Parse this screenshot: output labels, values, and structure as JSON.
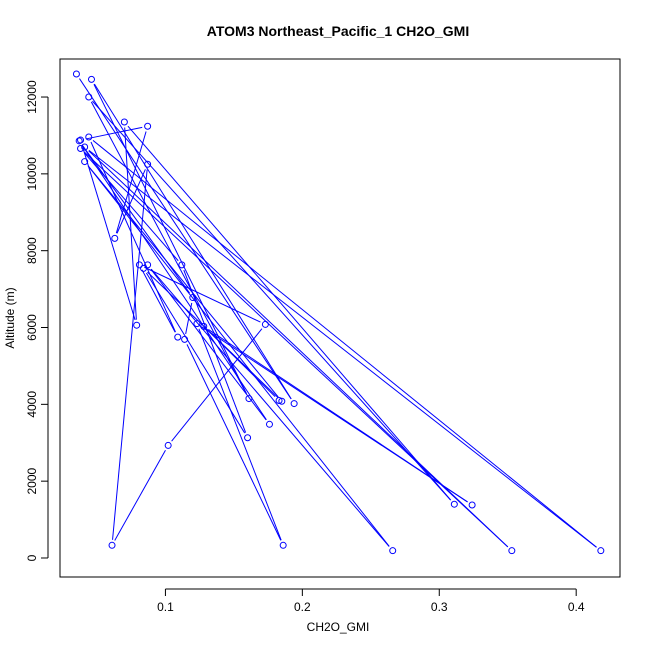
{
  "chart_data": {
    "type": "line",
    "title": "ATOM3 Northeast_Pacific_1 CH2O_GMI",
    "xlabel": "CH2O_GMI",
    "ylabel": "Altitude (m)",
    "xlim": [
      0.023,
      0.432
    ],
    "ylim": [
      -495,
      12990
    ],
    "x_ticks": [
      0.1,
      0.2,
      0.3,
      0.4
    ],
    "x_tick_labels": [
      "0.1",
      "0.2",
      "0.3",
      "0.4"
    ],
    "y_ticks": [
      0,
      2000,
      4000,
      6000,
      8000,
      10000,
      12000
    ],
    "y_tick_labels": [
      "0",
      "2000",
      "4000",
      "6000",
      "8000",
      "10000",
      "12000"
    ],
    "grid": false,
    "legend": "none",
    "series": [
      {
        "color": "#0000ff",
        "marker": "open-circle",
        "points": [
          [
            0.035,
            12600
          ],
          [
            0.194,
            4020
          ],
          [
            0.046,
            12460
          ],
          [
            0.161,
            4150
          ],
          [
            0.044,
            12000
          ],
          [
            0.311,
            1400
          ],
          [
            0.07,
            11350
          ],
          [
            0.079,
            6060
          ],
          [
            0.038,
            10880
          ],
          [
            0.087,
            11240
          ],
          [
            0.063,
            8320
          ],
          [
            0.087,
            10250
          ],
          [
            0.061,
            330
          ],
          [
            0.102,
            2930
          ],
          [
            0.173,
            6080
          ],
          [
            0.081,
            7630
          ],
          [
            0.109,
            5750
          ],
          [
            0.044,
            10960
          ],
          [
            0.418,
            190
          ],
          [
            0.041,
            10700
          ],
          [
            0.353,
            190
          ],
          [
            0.038,
            10660
          ],
          [
            0.112,
            7630
          ],
          [
            0.16,
            3130
          ],
          [
            0.084,
            7540
          ],
          [
            0.185,
            4080
          ],
          [
            0.041,
            10320
          ],
          [
            0.266,
            190
          ],
          [
            0.087,
            7630
          ],
          [
            0.176,
            3480
          ],
          [
            0.037,
            10860
          ],
          [
            0.12,
            6780
          ],
          [
            0.114,
            5690
          ],
          [
            0.186,
            330
          ],
          [
            0.123,
            6100
          ],
          [
            0.324,
            1380
          ],
          [
            0.128,
            6030
          ],
          [
            0.183,
            4100
          ]
        ]
      }
    ]
  }
}
